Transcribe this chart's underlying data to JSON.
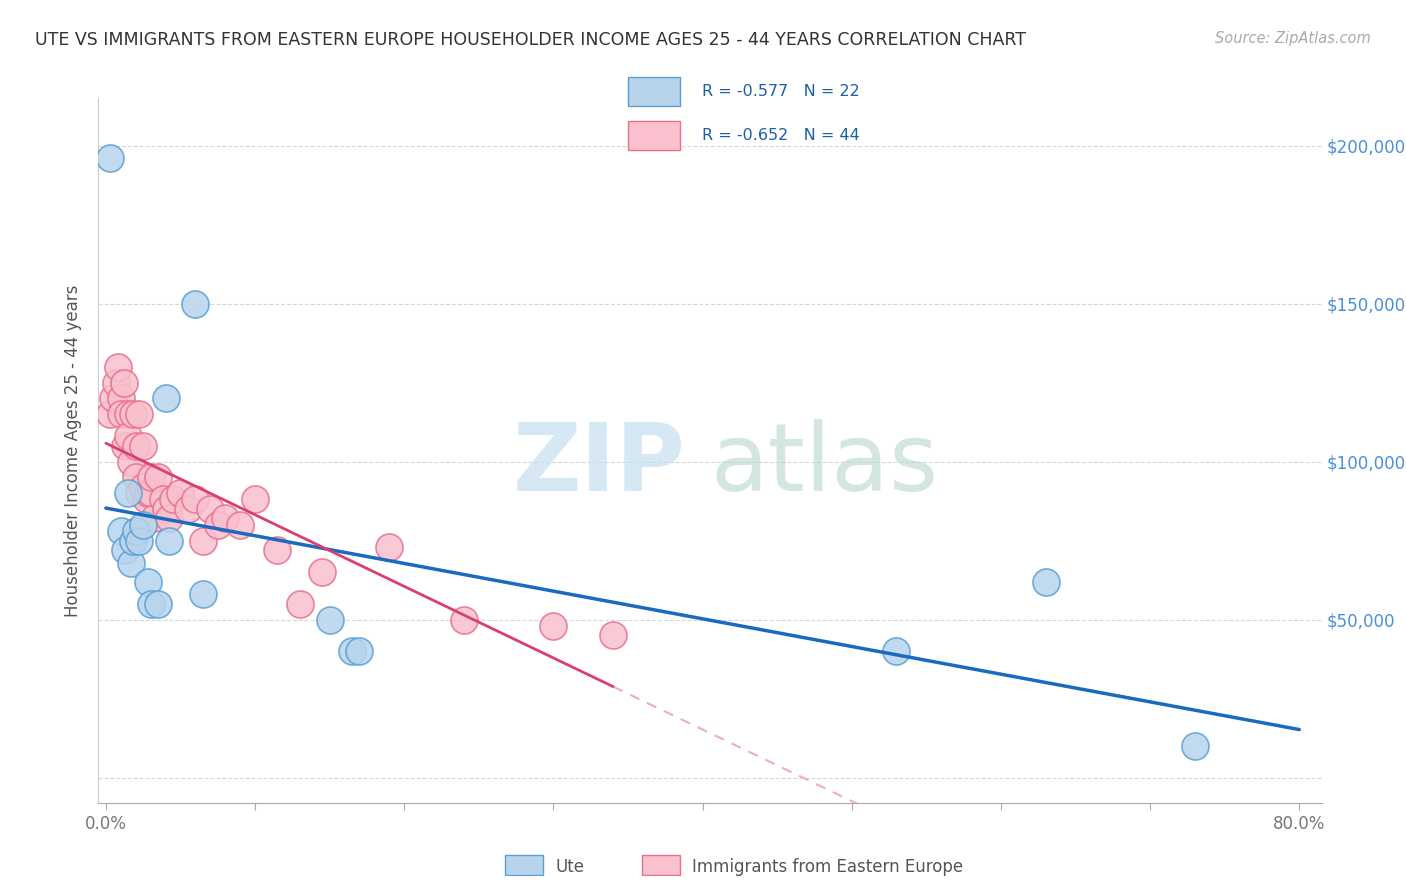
{
  "title": "UTE VS IMMIGRANTS FROM EASTERN EUROPE HOUSEHOLDER INCOME AGES 25 - 44 YEARS CORRELATION CHART",
  "source": "Source: ZipAtlas.com",
  "ylabel": "Householder Income Ages 25 - 44 years",
  "legend_label1": "Ute",
  "legend_label2": "Immigrants from Eastern Europe",
  "r1": "-0.577",
  "n1": "22",
  "r2": "-0.652",
  "n2": "44",
  "xmin": -0.005,
  "xmax": 0.815,
  "ymin": -8000,
  "ymax": 215000,
  "x_ticks": [
    0.0,
    0.1,
    0.2,
    0.3,
    0.4,
    0.5,
    0.6,
    0.7,
    0.8
  ],
  "x_tick_labels": [
    "0.0%",
    "",
    "",
    "",
    "",
    "",
    "",
    "",
    "80.0%"
  ],
  "y_ticks": [
    0,
    50000,
    100000,
    150000,
    200000
  ],
  "y_tick_labels_right": [
    "",
    "$50,000",
    "$100,000",
    "$150,000",
    "$200,000"
  ],
  "color_ute_fill": "#b8d4ed",
  "color_ute_edge": "#5a9fd4",
  "color_imm_fill": "#f9c0ce",
  "color_imm_edge": "#e8708a",
  "color_line_ute": "#1a6bbf",
  "color_line_imm": "#d94070",
  "color_line_imm_dash": "#e8b0c0",
  "color_grid": "#d8d8d8",
  "watermark_zip_color": "#c5dff0",
  "watermark_atlas_color": "#b8d8c8",
  "ute_x": [
    0.003,
    0.01,
    0.013,
    0.015,
    0.017,
    0.018,
    0.02,
    0.022,
    0.025,
    0.028,
    0.03,
    0.035,
    0.04,
    0.042,
    0.06,
    0.065,
    0.15,
    0.165,
    0.17,
    0.53,
    0.63,
    0.73
  ],
  "ute_y": [
    196000,
    78000,
    72000,
    90000,
    68000,
    75000,
    78000,
    75000,
    80000,
    62000,
    55000,
    55000,
    120000,
    75000,
    150000,
    58000,
    50000,
    40000,
    40000,
    40000,
    62000,
    10000
  ],
  "immigrants_x": [
    0.003,
    0.005,
    0.007,
    0.008,
    0.01,
    0.01,
    0.012,
    0.013,
    0.015,
    0.015,
    0.017,
    0.018,
    0.02,
    0.02,
    0.022,
    0.022,
    0.025,
    0.025,
    0.027,
    0.028,
    0.03,
    0.03,
    0.032,
    0.035,
    0.038,
    0.04,
    0.042,
    0.045,
    0.05,
    0.055,
    0.06,
    0.065,
    0.07,
    0.075,
    0.08,
    0.09,
    0.1,
    0.115,
    0.13,
    0.145,
    0.19,
    0.24,
    0.3,
    0.34
  ],
  "immigrants_y": [
    115000,
    120000,
    125000,
    130000,
    120000,
    115000,
    125000,
    105000,
    115000,
    108000,
    100000,
    115000,
    105000,
    95000,
    90000,
    115000,
    105000,
    92000,
    88000,
    90000,
    90000,
    95000,
    82000,
    95000,
    88000,
    85000,
    82000,
    88000,
    90000,
    85000,
    88000,
    75000,
    85000,
    80000,
    82000,
    80000,
    88000,
    72000,
    55000,
    65000,
    73000,
    50000,
    48000,
    45000
  ]
}
